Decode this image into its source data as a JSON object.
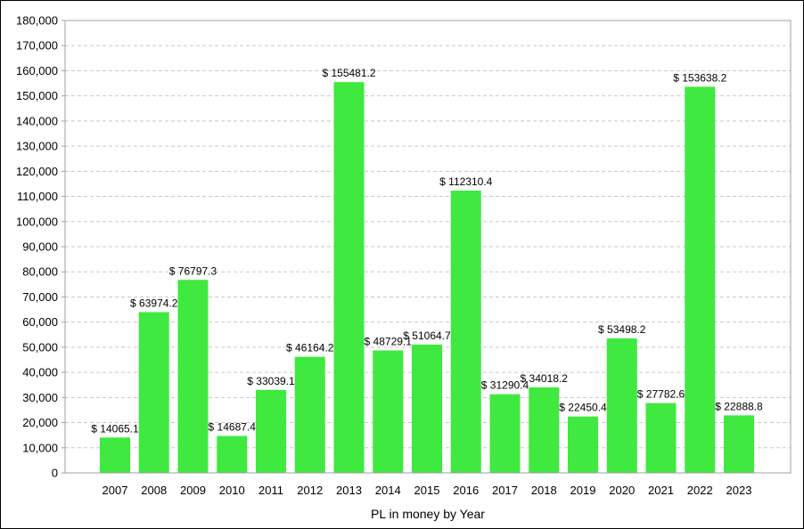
{
  "chart_data": {
    "type": "bar",
    "title": "",
    "xlabel": "PL in money by Year",
    "ylabel": "",
    "ylim": [
      0,
      180000
    ],
    "ytick_step": 10000,
    "grid": "horizontal-dashed",
    "legend": "none",
    "bar_color": "#3fe93f",
    "grid_color": "#c8c8c8",
    "value_prefix": "$ ",
    "categories": [
      "2007",
      "2008",
      "2009",
      "2010",
      "2011",
      "2012",
      "2013",
      "2014",
      "2015",
      "2016",
      "2017",
      "2018",
      "2019",
      "2020",
      "2021",
      "2022",
      "2023"
    ],
    "values": [
      14065.1,
      63974.2,
      76797.3,
      14687.4,
      33039.1,
      46164.2,
      155481.2,
      48729.1,
      51064.7,
      112310.4,
      31290.4,
      34018.2,
      22450.4,
      53498.2,
      27782.6,
      153638.2,
      22888.8
    ],
    "data_labels": [
      "$ 14065.1",
      "$ 63974.2",
      "$ 76797.3",
      "$ 14687.4",
      "$ 33039.1",
      "$ 46164.2",
      "$ 155481.2",
      "$ 48729.1",
      "$ 51064.7",
      "$ 112310.4",
      "$ 31290.4",
      "$ 34018.2",
      "$ 22450.4",
      "$ 53498.2",
      "$ 27782.6",
      "$ 153638.2",
      "$ 22888.8"
    ],
    "ytick_labels": [
      "0",
      "10,000",
      "20,000",
      "30,000",
      "40,000",
      "50,000",
      "60,000",
      "70,000",
      "80,000",
      "90,000",
      "100,000",
      "110,000",
      "120,000",
      "130,000",
      "140,000",
      "150,000",
      "160,000",
      "170,000",
      "180,000"
    ]
  }
}
